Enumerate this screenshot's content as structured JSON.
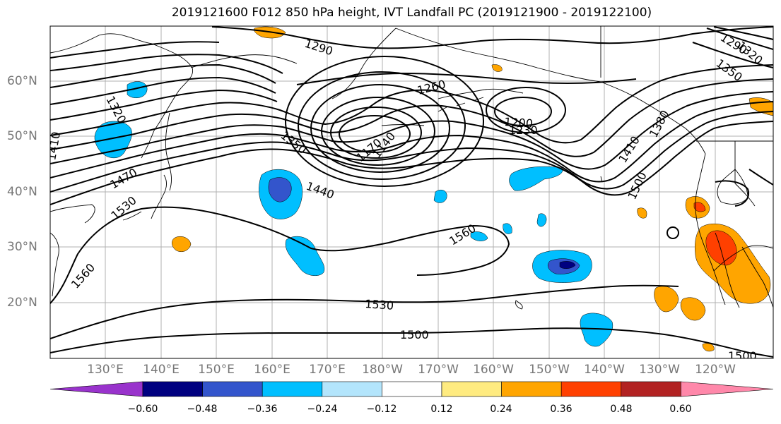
{
  "title": "2019121600 F012 850 hPa height, IVT Landfall PC (2019121900 - 2019122100)",
  "lat_labels": [
    "60°N",
    "50°N",
    "40°N",
    "30°N",
    "20°N"
  ],
  "lon_labels": [
    "130°E",
    "140°E",
    "150°E",
    "160°E",
    "170°E",
    "180°W",
    "170°W",
    "160°W",
    "150°W",
    "140°W",
    "130°W",
    "120°W"
  ],
  "contour_labels": [
    "1290",
    "1260",
    "1320",
    "1410",
    "1200",
    "1230",
    "1170",
    "1140",
    "1350",
    "1470",
    "1440",
    "1530",
    "1560",
    "1500",
    "1380"
  ],
  "colorbar": {
    "ticks": [
      "−0.60",
      "−0.48",
      "−0.36",
      "−0.24",
      "−0.12",
      "0.12",
      "0.24",
      "0.36",
      "0.48",
      "0.60"
    ],
    "colors": [
      "#9933cc",
      "#000080",
      "#3355cc",
      "#00bfff",
      "#b3e5fc",
      "#ffffff",
      "#ffeb80",
      "#ffa500",
      "#ff4000",
      "#b22222",
      "#ff88aa"
    ]
  }
}
